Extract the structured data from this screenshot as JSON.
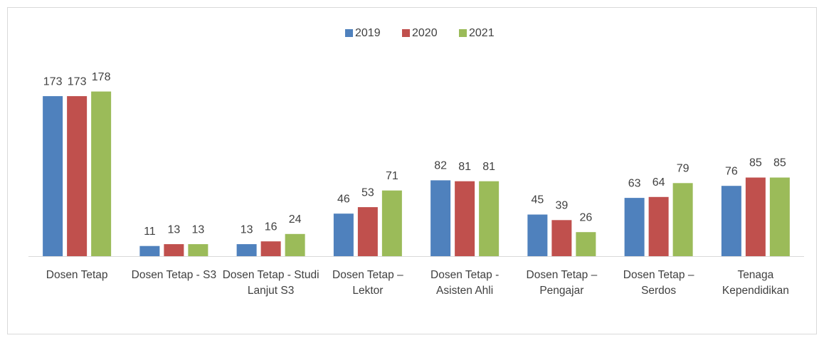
{
  "chart_data": {
    "type": "bar",
    "categories": [
      "Dosen Tetap",
      "Dosen Tetap - S3",
      "Dosen Tetap - Studi Lanjut S3",
      "Dosen Tetap – Lektor",
      "Dosen Tetap - Asisten Ahli",
      "Dosen Tetap – Pengajar",
      "Dosen Tetap – Serdos",
      "Tenaga Kependidikan"
    ],
    "series": [
      {
        "name": "2019",
        "color": "#4f81bd",
        "values": [
          173,
          11,
          13,
          46,
          82,
          45,
          63,
          76
        ]
      },
      {
        "name": "2020",
        "color": "#c0504d",
        "values": [
          173,
          13,
          16,
          53,
          81,
          39,
          64,
          85
        ]
      },
      {
        "name": "2021",
        "color": "#9bbb59",
        "values": [
          178,
          13,
          24,
          71,
          81,
          26,
          79,
          85
        ]
      }
    ],
    "ylim": [
      0,
      200
    ],
    "legend": "top"
  }
}
